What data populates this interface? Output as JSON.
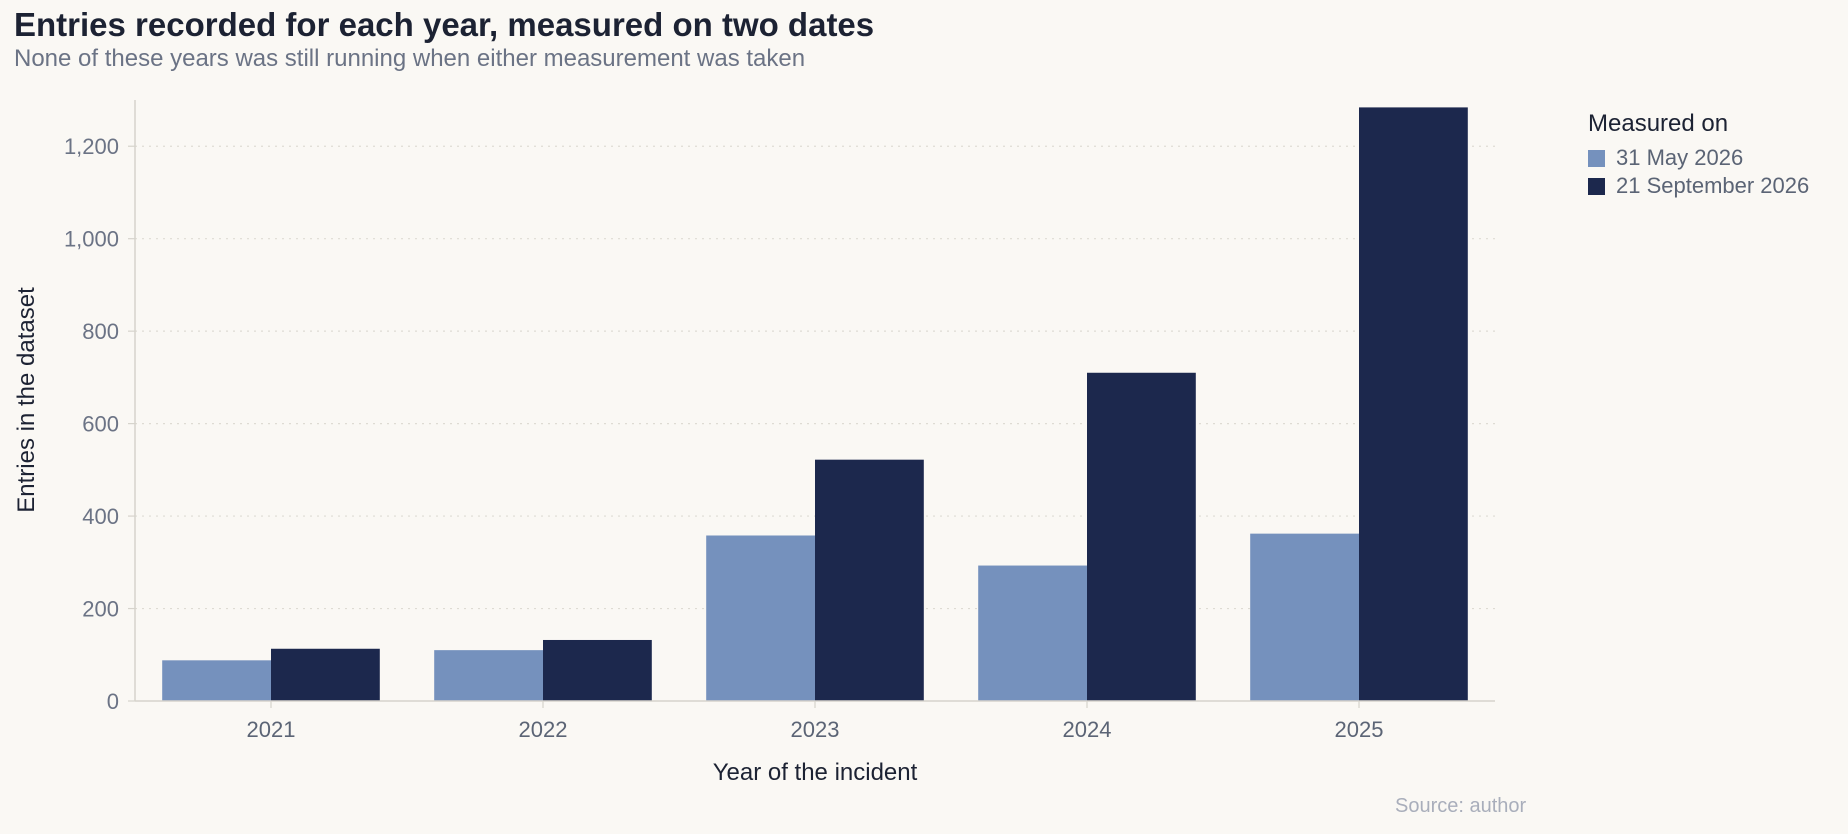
{
  "title": "Entries recorded for each year, measured on two dates",
  "subtitle": "None of these years was still running when either measurement was taken",
  "source": "Source: author",
  "legend": {
    "title": "Measured on",
    "items": [
      {
        "label": "31 May 2026",
        "color": "#7591bd"
      },
      {
        "label": "21 September 2026",
        "color": "#1c284d"
      }
    ]
  },
  "chart_data": {
    "type": "bar",
    "title": "Entries recorded for each year, measured on two dates",
    "subtitle": "None of these years was still running when either measurement was taken",
    "xlabel": "Year of the incident",
    "ylabel": "Entries in the dataset",
    "categories": [
      "2021",
      "2022",
      "2023",
      "2024",
      "2025"
    ],
    "series": [
      {
        "name": "31 May 2026",
        "color": "#7591bd",
        "values": [
          88,
          110,
          358,
          293,
          362
        ]
      },
      {
        "name": "21 September 2026",
        "color": "#1c284d",
        "values": [
          113,
          132,
          522,
          710,
          1284
        ]
      }
    ],
    "ylim": [
      0,
      1300
    ],
    "yticks": [
      0,
      200,
      400,
      600,
      800,
      1000,
      1200
    ],
    "ytick_labels": [
      "0",
      "200",
      "400",
      "600",
      "800",
      "1,000",
      "1,200"
    ],
    "grid": "horizontal dotted",
    "legend_position": "right"
  }
}
